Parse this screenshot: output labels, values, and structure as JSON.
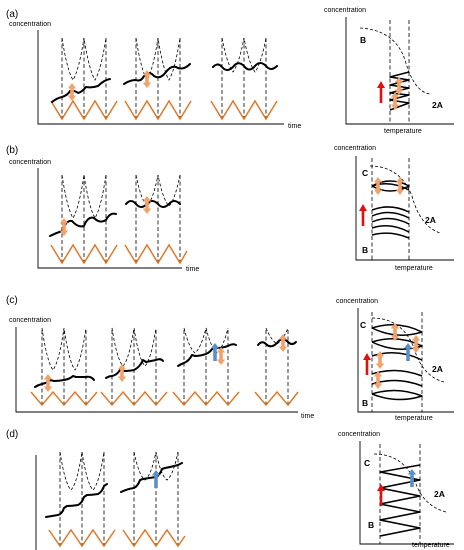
{
  "panels": [
    {
      "id": "a",
      "label": "(a)",
      "left_ylabel": "concentration",
      "left_xlabel": "time",
      "right_ylabel": "concentration",
      "right_xlabel": "temperature",
      "label_upper": "B",
      "label_lower": "",
      "label_2A": "2A"
    },
    {
      "id": "b",
      "label": "(b)",
      "left_ylabel": "concentration",
      "left_xlabel": "time",
      "right_ylabel": "concentration",
      "right_xlabel": "temperature",
      "label_upper": "C",
      "label_lower": "B",
      "label_2A": "2A"
    },
    {
      "id": "c",
      "label": "(c)",
      "left_ylabel": "concentration",
      "left_xlabel": "time",
      "right_ylabel": "concentration",
      "right_xlabel": "temperature",
      "label_upper": "C",
      "label_lower": "B",
      "label_2A": "2A"
    },
    {
      "id": "d",
      "label": "(d)",
      "left_ylabel": "",
      "left_xlabel": "",
      "right_ylabel": "concentration",
      "right_xlabel": "temperature",
      "label_upper": "C",
      "label_lower": "B",
      "label_2A": "2A"
    }
  ],
  "colors": {
    "zigzag": "#E07A2A",
    "orange_arrow": "#F2A36B",
    "blue_arrow": "#5B8FC9",
    "red_arrow": "#E01010",
    "line": "#000000"
  }
}
